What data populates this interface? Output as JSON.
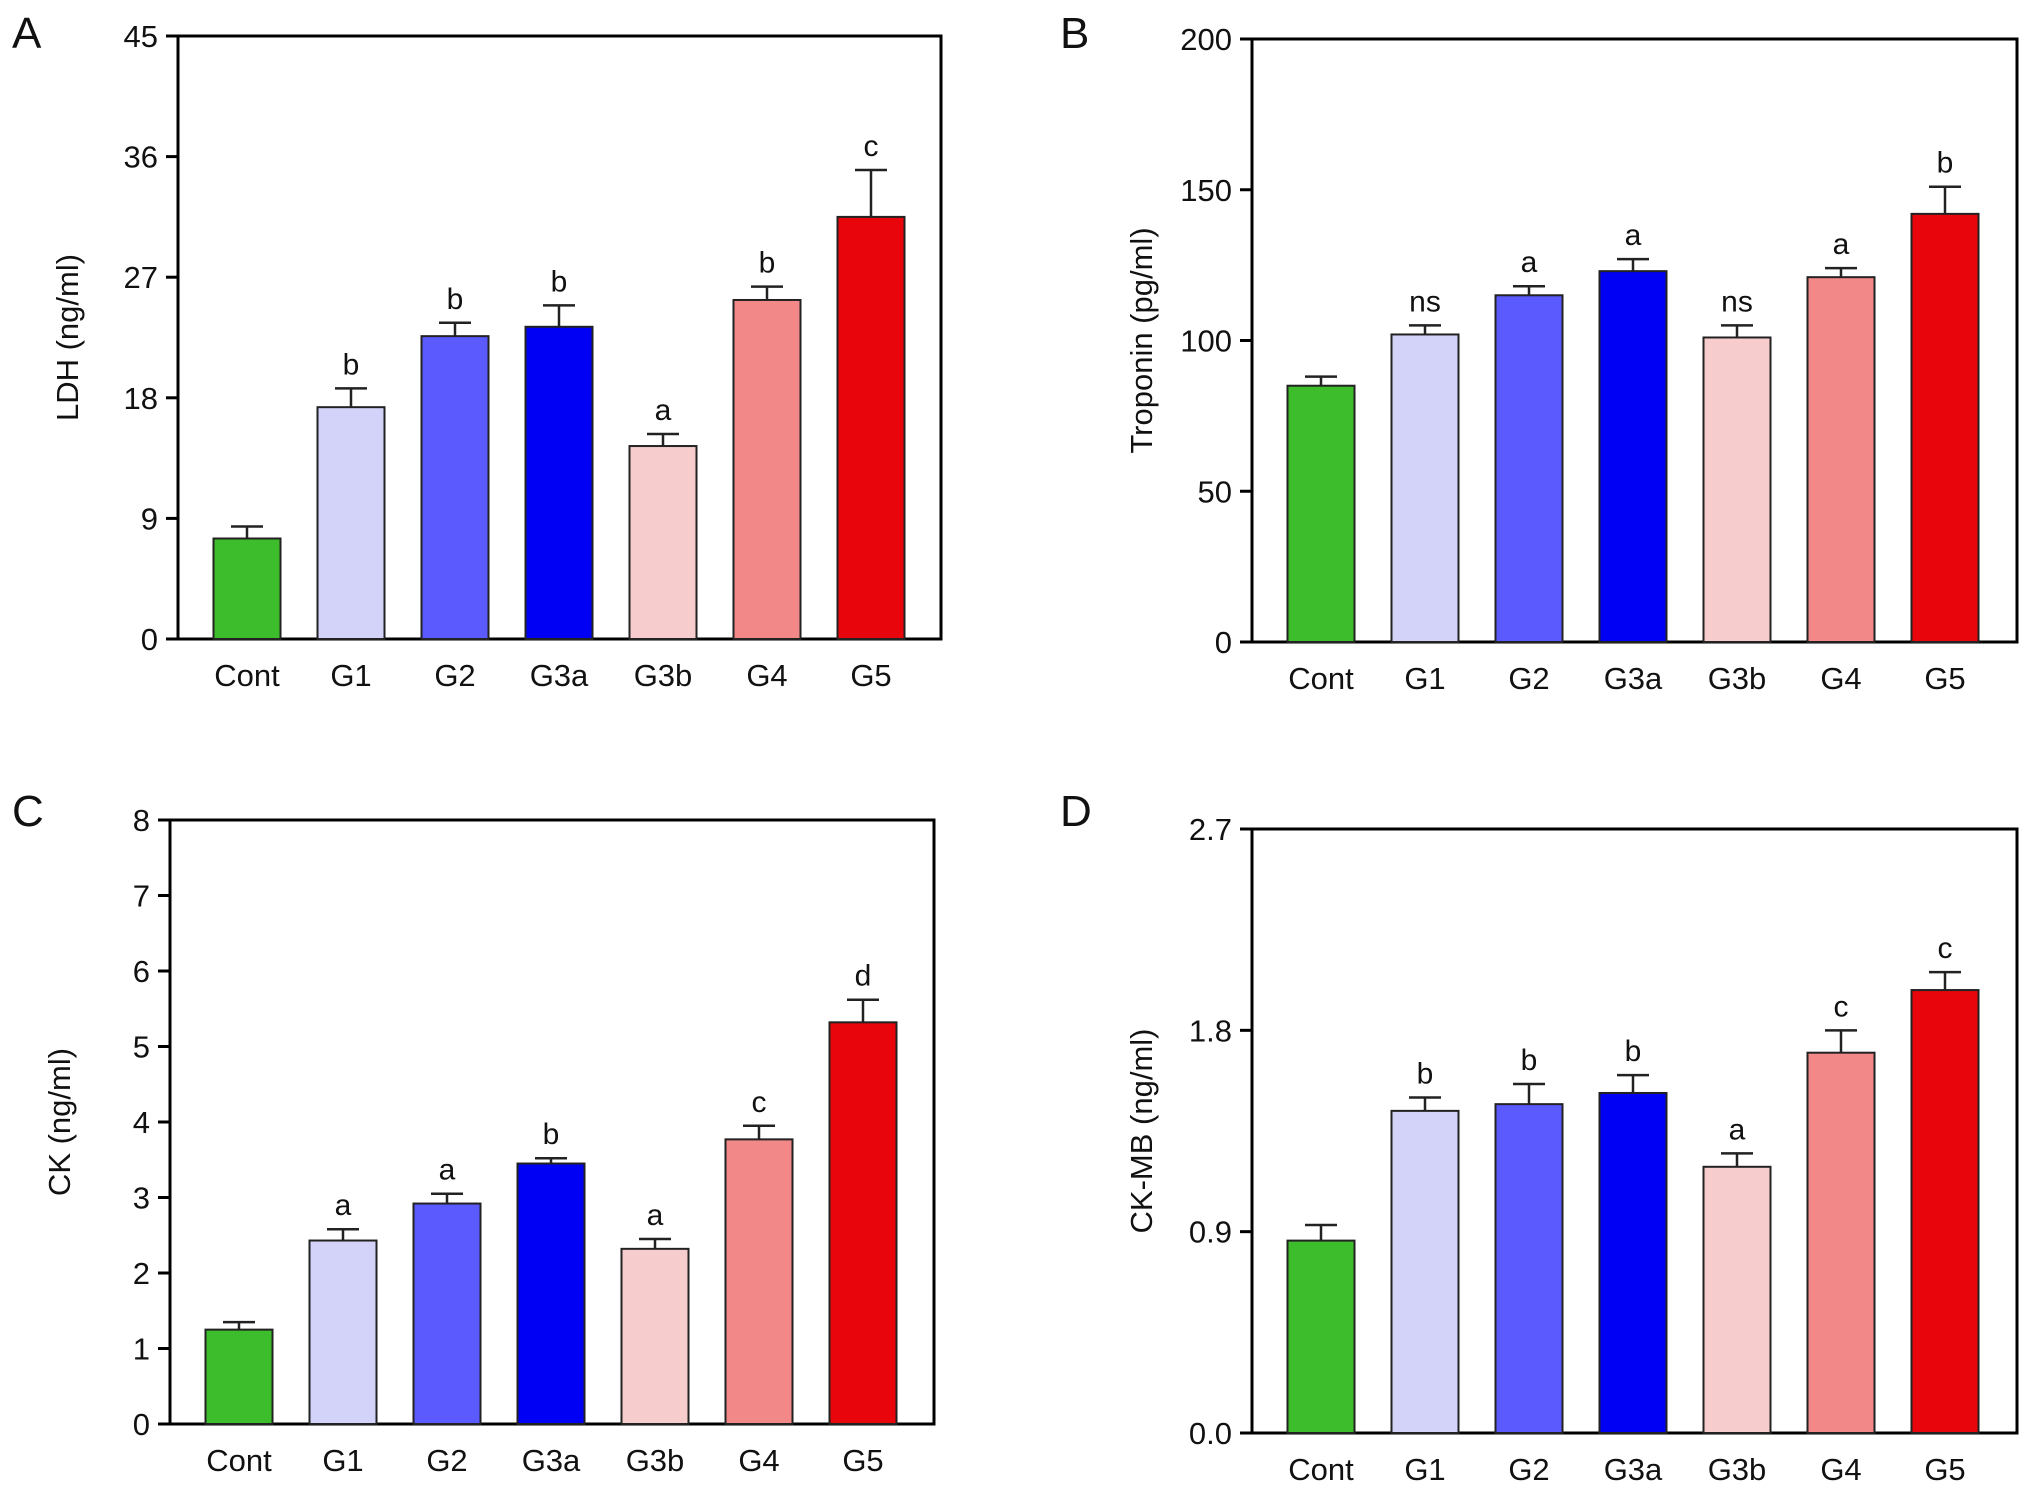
{
  "chart_data": [
    {
      "panel": "A",
      "type": "bar",
      "title": "",
      "xlabel": "",
      "ylabel": "LDH (ng/ml)",
      "ylim": [
        0,
        45
      ],
      "yticks": [
        0,
        9,
        18,
        27,
        36,
        45
      ],
      "tick_labels": [
        "0",
        "9",
        "18",
        "27",
        "36",
        "45"
      ],
      "categories": [
        "Cont",
        "G1",
        "G2",
        "G3a",
        "G3b",
        "G4",
        "G5"
      ],
      "values": [
        7.5,
        17.3,
        22.6,
        23.3,
        14.4,
        25.3,
        31.5
      ],
      "error_upper": [
        8.4,
        18.7,
        23.6,
        24.9,
        15.3,
        26.3,
        35.0
      ],
      "annotations": [
        "",
        "b",
        "b",
        "b",
        "a",
        "b",
        "c"
      ]
    },
    {
      "panel": "B",
      "type": "bar",
      "title": "",
      "xlabel": "",
      "ylabel": "Troponin (pg/ml)",
      "ylim": [
        0,
        200
      ],
      "yticks": [
        0,
        50,
        100,
        150,
        200
      ],
      "tick_labels": [
        "0",
        "50",
        "100",
        "150",
        "200"
      ],
      "categories": [
        "Cont",
        "G1",
        "G2",
        "G3a",
        "G3b",
        "G4",
        "G5"
      ],
      "values": [
        85,
        102,
        115,
        123,
        101,
        121,
        142
      ],
      "error_upper": [
        88,
        105,
        118,
        127,
        105,
        124,
        151
      ],
      "annotations": [
        "",
        "ns",
        "a",
        "a",
        "ns",
        "a",
        "b"
      ]
    },
    {
      "panel": "C",
      "type": "bar",
      "title": "",
      "xlabel": "",
      "ylabel": "CK (ng/ml)",
      "ylim": [
        0,
        8
      ],
      "yticks": [
        0,
        1,
        2,
        3,
        4,
        5,
        6,
        7,
        8
      ],
      "tick_labels": [
        "0",
        "1",
        "2",
        "3",
        "4",
        "5",
        "6",
        "7",
        "8"
      ],
      "categories": [
        "Cont",
        "G1",
        "G2",
        "G3a",
        "G3b",
        "G4",
        "G5"
      ],
      "values": [
        1.25,
        2.43,
        2.92,
        3.45,
        2.32,
        3.77,
        5.32
      ],
      "error_upper": [
        1.35,
        2.58,
        3.05,
        3.52,
        2.45,
        3.95,
        5.62
      ],
      "annotations": [
        "",
        "a",
        "a",
        "b",
        "a",
        "c",
        "d"
      ]
    },
    {
      "panel": "D",
      "type": "bar",
      "title": "",
      "xlabel": "",
      "ylabel": "CK-MB (ng/ml)",
      "ylim": [
        0,
        2.7
      ],
      "yticks": [
        0,
        0.9,
        1.8,
        2.7
      ],
      "tick_labels": [
        "0.0",
        "0.9",
        "1.8",
        "2.7"
      ],
      "categories": [
        "Cont",
        "G1",
        "G2",
        "G3a",
        "G3b",
        "G4",
        "G5"
      ],
      "values": [
        0.86,
        1.44,
        1.47,
        1.52,
        1.19,
        1.7,
        1.98
      ],
      "error_upper": [
        0.93,
        1.5,
        1.56,
        1.6,
        1.25,
        1.8,
        2.06
      ],
      "annotations": [
        "",
        "b",
        "b",
        "b",
        "a",
        "c",
        "c"
      ]
    }
  ],
  "colors": [
    "#3dbd2c",
    "#d3d3fa",
    "#5a5aff",
    "#0000f5",
    "#f7cccc",
    "#f38888",
    "#e8060c"
  ]
}
